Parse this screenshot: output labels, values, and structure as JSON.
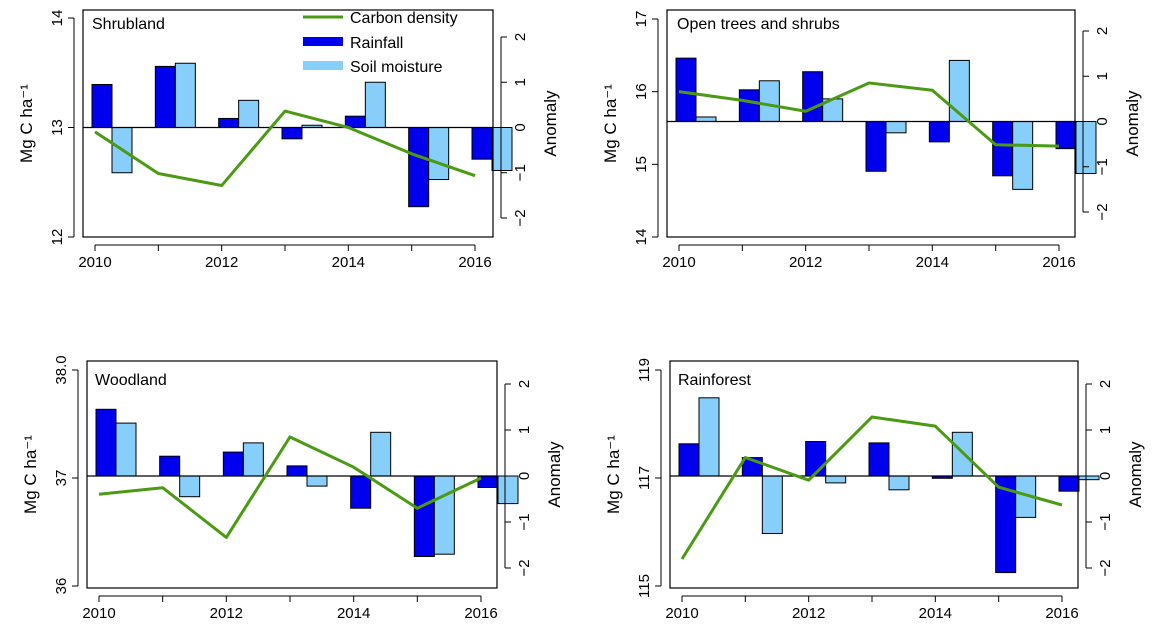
{
  "legend": {
    "items": [
      {
        "label": "Carbon density",
        "color": "#4a9a14",
        "kind": "line"
      },
      {
        "label": "Rainfall",
        "color": "#0000ee",
        "kind": "box"
      },
      {
        "label": "Soil moisture",
        "color": "#87cefa",
        "kind": "box"
      }
    ]
  },
  "colors": {
    "rainfall": "#0000ee",
    "soil_moisture": "#87cefa",
    "carbon": "#4a9a14",
    "frame": "#000000"
  },
  "chart_data": [
    {
      "type": "bar",
      "title": "Shrubland",
      "left_label": "Mg C ha⁻¹",
      "right_label": "Anomaly",
      "x_ticks": [
        "2010",
        "2012",
        "2014",
        "2016"
      ],
      "xlim": [
        2010,
        2016
      ],
      "left_ticks": [
        "12",
        "13",
        "14"
      ],
      "left_lim": [
        12,
        14
      ],
      "right_ticks": [
        "2",
        "1",
        "0",
        "−1",
        "−2"
      ],
      "right_lim": [
        -2.5,
        2.5
      ],
      "series": [
        {
          "name": "Carbon density",
          "x": [
            2010,
            2011,
            2012,
            2013,
            2014,
            2015,
            2016
          ],
          "values": [
            12.96,
            12.58,
            12.47,
            13.15,
            13.0,
            12.76,
            12.56
          ]
        },
        {
          "name": "Rainfall",
          "x": [
            2010,
            2011,
            2012,
            2013,
            2014,
            2015,
            2016
          ],
          "values": [
            0.95,
            1.35,
            0.2,
            -0.25,
            0.25,
            -1.75,
            -0.7
          ]
        },
        {
          "name": "Soil moisture",
          "x": [
            2010,
            2011,
            2012,
            2013,
            2014,
            2015,
            2016
          ],
          "values": [
            -1.0,
            1.42,
            0.6,
            0.05,
            1.0,
            -1.15,
            -0.95
          ]
        }
      ]
    },
    {
      "type": "bar",
      "title": "Open trees and shrubs",
      "left_label": "Mg C ha⁻¹",
      "right_label": "Anomaly",
      "x_ticks": [
        "2010",
        "2012",
        "2014",
        "2016"
      ],
      "xlim": [
        2010,
        2016
      ],
      "left_ticks": [
        "14",
        "15",
        "16",
        "17"
      ],
      "left_lim": [
        14,
        17
      ],
      "right_ticks": [
        "2",
        "1",
        "0",
        "−1",
        "−2"
      ],
      "right_lim": [
        -2.5,
        2.5
      ],
      "series": [
        {
          "name": "Carbon density",
          "x": [
            2010,
            2011,
            2012,
            2013,
            2014,
            2015,
            2016
          ],
          "values": [
            16.0,
            15.88,
            15.73,
            16.12,
            16.02,
            15.27,
            15.25
          ]
        },
        {
          "name": "Rainfall",
          "x": [
            2010,
            2011,
            2012,
            2013,
            2014,
            2015,
            2016
          ],
          "values": [
            1.4,
            0.7,
            1.1,
            -1.1,
            -0.45,
            -1.2,
            -0.6
          ]
        },
        {
          "name": "Soil moisture",
          "x": [
            2010,
            2011,
            2012,
            2013,
            2014,
            2015,
            2016
          ],
          "values": [
            0.1,
            0.9,
            0.5,
            -0.25,
            1.35,
            -1.5,
            -1.15
          ]
        }
      ]
    },
    {
      "type": "bar",
      "title": "Woodland",
      "left_label": "Mg C ha⁻¹",
      "right_label": "Anomaly",
      "x_ticks": [
        "2010",
        "2012",
        "2014",
        "2016"
      ],
      "xlim": [
        2010,
        2016
      ],
      "left_ticks": [
        "36",
        "37",
        "38.0"
      ],
      "left_lim": [
        36,
        38
      ],
      "right_ticks": [
        "2",
        "1",
        "0",
        "−1",
        "−2"
      ],
      "right_lim": [
        -2.5,
        2.5
      ],
      "series": [
        {
          "name": "Carbon density",
          "x": [
            2010,
            2011,
            2012,
            2013,
            2014,
            2015,
            2016
          ],
          "values": [
            36.85,
            36.91,
            36.45,
            37.38,
            37.1,
            36.72,
            37.0
          ]
        },
        {
          "name": "Rainfall",
          "x": [
            2010,
            2011,
            2012,
            2013,
            2014,
            2015,
            2016
          ],
          "values": [
            1.45,
            0.43,
            0.52,
            0.22,
            -0.7,
            -1.75,
            -0.25
          ]
        },
        {
          "name": "Soil moisture",
          "x": [
            2010,
            2011,
            2012,
            2013,
            2014,
            2015,
            2016
          ],
          "values": [
            1.15,
            -0.45,
            0.72,
            -0.22,
            0.95,
            -1.7,
            -0.6
          ]
        }
      ]
    },
    {
      "type": "bar",
      "title": "Rainforest",
      "left_label": "Mg C ha⁻¹",
      "right_label": "Anomaly",
      "x_ticks": [
        "2010",
        "2012",
        "2014",
        "2016"
      ],
      "xlim": [
        2010,
        2016
      ],
      "left_ticks": [
        "115",
        "117",
        "119"
      ],
      "left_lim": [
        115,
        119
      ],
      "right_ticks": [
        "2",
        "1",
        "0",
        "−1",
        "−2"
      ],
      "right_lim": [
        -2.5,
        2.5
      ],
      "series": [
        {
          "name": "Carbon density",
          "x": [
            2010,
            2011,
            2012,
            2013,
            2014,
            2015,
            2016
          ],
          "values": [
            115.5,
            117.38,
            116.96,
            118.13,
            117.96,
            116.83,
            116.5
          ]
        },
        {
          "name": "Rainfall",
          "x": [
            2010,
            2011,
            2012,
            2013,
            2014,
            2015,
            2016
          ],
          "values": [
            0.7,
            0.4,
            0.75,
            0.72,
            -0.05,
            -2.1,
            -0.33
          ]
        },
        {
          "name": "Soil moisture",
          "x": [
            2010,
            2011,
            2012,
            2013,
            2014,
            2015,
            2016
          ],
          "values": [
            1.7,
            -1.25,
            -0.15,
            -0.3,
            0.95,
            -0.9,
            -0.08
          ]
        }
      ]
    }
  ]
}
